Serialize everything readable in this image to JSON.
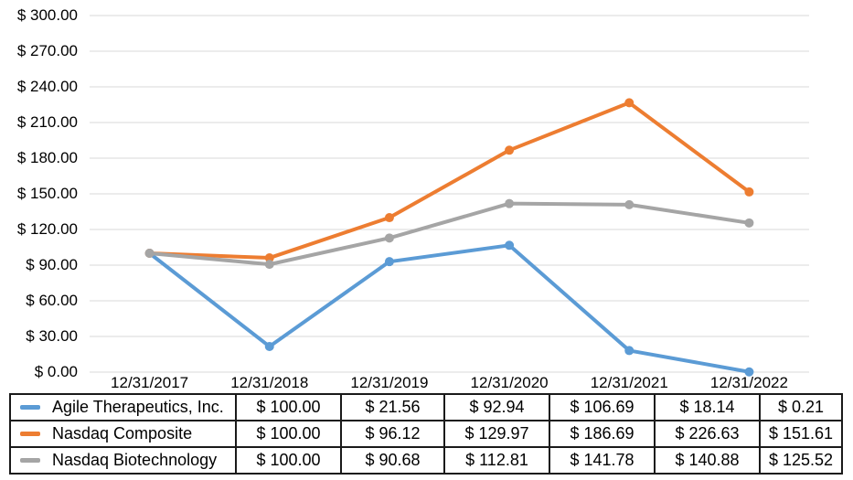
{
  "chart_data": {
    "type": "line",
    "title": "",
    "xlabel": "",
    "ylabel": "",
    "x": [
      "12/31/2017",
      "12/31/2018",
      "12/31/2019",
      "12/31/2020",
      "12/31/2021",
      "12/31/2022"
    ],
    "ylim": [
      0,
      300
    ],
    "y_step": 30,
    "y_tick_labels": [
      "$ 300.00",
      "$ 270.00",
      "$ 240.00",
      "$ 210.00",
      "$ 180.00",
      "$ 150.00",
      "$ 120.00",
      "$ 90.00",
      "$ 60.00",
      "$ 30.00",
      "$ 0.00"
    ],
    "grid": "horizontal gridlines on, vertical off",
    "legend_position": "left column of data table below chart",
    "marker": "circle",
    "series": [
      {
        "name": "Agile Therapeutics, Inc.",
        "color": "#5B9BD5",
        "values": [
          100.0,
          21.56,
          92.94,
          106.69,
          18.14,
          0.21
        ],
        "formatted": [
          "$ 100.00",
          "$ 21.56",
          "$ 92.94",
          "$ 106.69",
          "$ 18.14",
          "$ 0.21"
        ]
      },
      {
        "name": "Nasdaq Composite",
        "color": "#ED7D31",
        "values": [
          100.0,
          96.12,
          129.97,
          186.69,
          226.63,
          151.61
        ],
        "formatted": [
          "$ 100.00",
          "$ 96.12",
          "$ 129.97",
          "$ 186.69",
          "$ 226.63",
          "$ 151.61"
        ]
      },
      {
        "name": "Nasdaq Biotechnology",
        "color": "#A5A5A5",
        "values": [
          100.0,
          90.68,
          112.81,
          141.78,
          140.88,
          125.52
        ],
        "formatted": [
          "$ 100.00",
          "$ 90.68",
          "$ 112.81",
          "$ 141.78",
          "$ 140.88",
          "$ 125.52"
        ]
      }
    ]
  },
  "colors": {
    "gridline": "#D9D9D9",
    "axis_text": "#000000",
    "table_border": "#1A1A1A",
    "background": "#FFFFFF"
  }
}
